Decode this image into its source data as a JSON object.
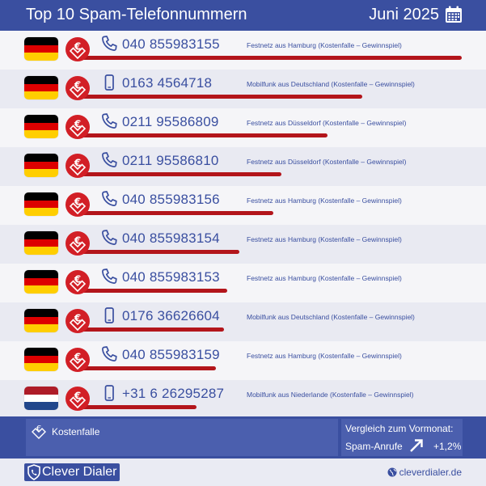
{
  "header": {
    "title": "Top 10 Spam-Telefonnummern",
    "date": "Juni 2025",
    "calendar_icon": "calendar-icon"
  },
  "rows": [
    {
      "flag": "DE",
      "number": "040 855983155",
      "device": "phone-icon",
      "desc": "Festnetz aus Hamburg (Kostenfalle – Gewinnspiel)",
      "bar_relative": 1.0
    },
    {
      "flag": "DE",
      "number": "0163 4564718",
      "device": "mobile-icon",
      "desc": "Mobilfunk aus Deutschland (Kostenfalle – Gewinnspiel)",
      "bar_relative": 0.74
    },
    {
      "flag": "DE",
      "number": "0211 95586809",
      "device": "phone-icon",
      "desc": "Festnetz aus Düsseldorf (Kostenfalle – Gewinnspiel)",
      "bar_relative": 0.65
    },
    {
      "flag": "DE",
      "number": "0211 95586810",
      "device": "phone-icon",
      "desc": "Festnetz aus Düsseldorf (Kostenfalle – Gewinnspiel)",
      "bar_relative": 0.53
    },
    {
      "flag": "DE",
      "number": "040 855983156",
      "device": "phone-icon",
      "desc": "Festnetz aus Hamburg (Kostenfalle – Gewinnspiel)",
      "bar_relative": 0.51
    },
    {
      "flag": "DE",
      "number": "040 855983154",
      "device": "phone-icon",
      "desc": "Festnetz aus Hamburg (Kostenfalle – Gewinnspiel)",
      "bar_relative": 0.42
    },
    {
      "flag": "DE",
      "number": "040 855983153",
      "device": "phone-icon",
      "desc": "Festnetz aus Hamburg (Kostenfalle – Gewinnspiel)",
      "bar_relative": 0.39
    },
    {
      "flag": "DE",
      "number": "0176 36626604",
      "device": "mobile-icon",
      "desc": "Mobilfunk aus Deutschland (Kostenfalle – Gewinnspiel)",
      "bar_relative": 0.38
    },
    {
      "flag": "DE",
      "number": "040 855983159",
      "device": "phone-icon",
      "desc": "Festnetz aus Hamburg (Kostenfalle – Gewinnspiel)",
      "bar_relative": 0.36
    },
    {
      "flag": "NL",
      "number": "+31 6 26295287",
      "device": "mobile-icon",
      "desc": "Mobilfunk aus Niederlande (Kostenfalle – Gewinnspiel)",
      "bar_relative": 0.31
    }
  ],
  "legend": {
    "icon": "euro-cost-icon",
    "label": "Kostenfalle"
  },
  "comparison": {
    "title": "Vergleich zum Vormonat:",
    "label": "Spam-Anrufe",
    "value": "+1,2%",
    "icon": "arrow-up-right-icon"
  },
  "brand": {
    "name": "Clever Dialer",
    "site": "cleverdialer.de"
  },
  "colors": {
    "primary": "#3a4fa0",
    "red": "#d21f26",
    "bar": "#b3151b",
    "row_a": "#f5f5f8",
    "row_b": "#e9eaf2"
  }
}
